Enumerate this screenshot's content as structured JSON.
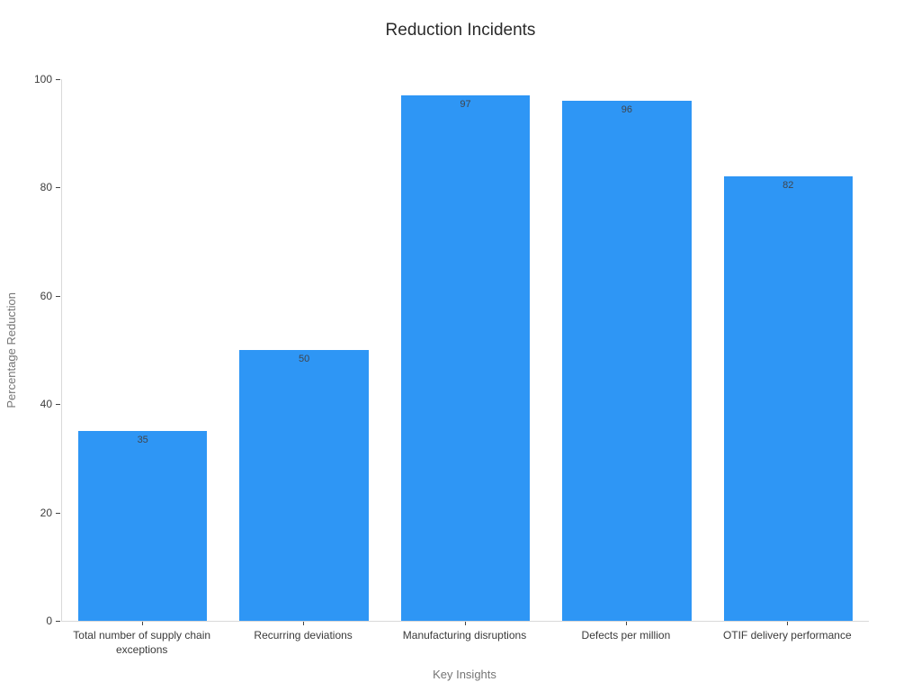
{
  "chart_data": {
    "type": "bar",
    "title": "Reduction Incidents",
    "xlabel": "Key Insights",
    "ylabel": "Percentage Reduction",
    "categories": [
      "Total number of supply chain exceptions",
      "Recurring deviations",
      "Manufacturing disruptions",
      "Defects per million",
      "OTIF delivery performance"
    ],
    "values": [
      35,
      50,
      97,
      96,
      82
    ],
    "value_labels": [
      "35",
      "50",
      "97",
      "96",
      "82"
    ],
    "yticks": [
      "0",
      "20",
      "40",
      "60",
      "80",
      "100"
    ],
    "ylim": [
      0,
      100
    ],
    "grid": false,
    "legend_position": "none",
    "colors": {
      "bar": "#2e96f5",
      "spine": "#d9d9d9",
      "tick": "#444444",
      "tick_label": "#3d3d3d",
      "axis_title": "#757575",
      "title": "#2b2b2b",
      "value_label": "#40454c",
      "background": "#ffffff"
    }
  }
}
